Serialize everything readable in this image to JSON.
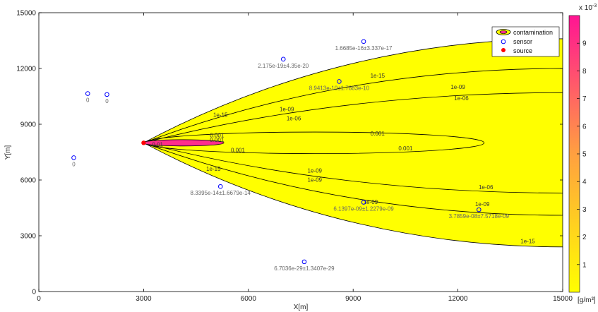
{
  "chart_data": {
    "type": "contour",
    "xlabel": "X[m]",
    "ylabel": "Y[m]",
    "xlim": [
      0,
      15000
    ],
    "ylim": [
      0,
      15000
    ],
    "xticks": [
      0,
      3000,
      6000,
      9000,
      12000,
      15000
    ],
    "yticks": [
      0,
      3000,
      6000,
      9000,
      12000,
      15000
    ],
    "legend": {
      "placement": "top-right",
      "entries": [
        "contamination",
        "sensor",
        "source"
      ]
    },
    "source": {
      "x": 3000,
      "y": 8000,
      "color": "#ff0000"
    },
    "plume_fill_color": "#ffff00",
    "core_fill_color": "#ff2d8c",
    "contours": [
      {
        "level": "1e-15",
        "outer_x": 15000,
        "upper_y": 13600,
        "lower_y": 2400
      },
      {
        "level": "1e-09",
        "outer_x": 15000,
        "upper_y": 12000,
        "lower_y": 4100
      },
      {
        "level": "1e-06",
        "outer_x": 15000,
        "upper_y": 10700,
        "lower_y": 5300
      },
      {
        "level": "0.001",
        "shape": "ellipse",
        "cx": 7900,
        "cy": 8000,
        "rx": 4850,
        "ry": 580
      },
      {
        "level": "core",
        "shape": "ellipse",
        "cx": 4130,
        "cy": 8000,
        "rx": 1170,
        "ry": 170
      }
    ],
    "contour_labels": [
      {
        "text": "1e-15",
        "x": 5200,
        "y": 9400
      },
      {
        "text": "1e-15",
        "x": 9700,
        "y": 11500
      },
      {
        "text": "1e-09",
        "x": 7100,
        "y": 9700
      },
      {
        "text": "1e-09",
        "x": 12000,
        "y": 10900
      },
      {
        "text": "1e-06",
        "x": 7300,
        "y": 9200
      },
      {
        "text": "1e-06",
        "x": 12100,
        "y": 10300
      },
      {
        "text": "0.001",
        "x": 5100,
        "y": 8300
      },
      {
        "text": "0.001",
        "x": 9700,
        "y": 8400
      },
      {
        "text": "0.001",
        "x": 5700,
        "y": 7500
      },
      {
        "text": "0.001",
        "x": 10500,
        "y": 7600
      },
      {
        "text": "0.001",
        "x": 5100,
        "y": 8050
      },
      {
        "text": "0.01",
        "x": 3400,
        "y": 7800
      },
      {
        "text": "1e-15",
        "x": 5000,
        "y": 6500
      },
      {
        "text": "1e-09",
        "x": 7900,
        "y": 6400
      },
      {
        "text": "1e-09",
        "x": 7900,
        "y": 5900
      },
      {
        "text": "1e-09",
        "x": 9500,
        "y": 4700
      },
      {
        "text": "1e-06",
        "x": 12800,
        "y": 5500
      },
      {
        "text": "1e-09",
        "x": 12700,
        "y": 4600
      },
      {
        "text": "1e-15",
        "x": 14000,
        "y": 2600
      }
    ],
    "sensors": [
      {
        "x": 1000,
        "y": 7200,
        "label": "0"
      },
      {
        "x": 1400,
        "y": 10650,
        "label": "0"
      },
      {
        "x": 1950,
        "y": 10600,
        "label": "0"
      },
      {
        "x": 7000,
        "y": 12500,
        "label": "2.175e-19±4.35e-20"
      },
      {
        "x": 9300,
        "y": 13450,
        "label": "1.6685e-16±3.337e-17"
      },
      {
        "x": 8600,
        "y": 11300,
        "label": "8.9413e-10±1.7883e-10"
      },
      {
        "x": 5200,
        "y": 5650,
        "label": "8.3395e-14±1.6679e-14"
      },
      {
        "x": 9300,
        "y": 4800,
        "label": "6.1397e-09±1.2279e-09"
      },
      {
        "x": 12600,
        "y": 4400,
        "label": "3.7859e-08±7.5718e-09"
      },
      {
        "x": 7600,
        "y": 1600,
        "label": "6.7036e-29±1.3407e-29"
      }
    ],
    "colorbar": {
      "label": "[g/m³]",
      "exponent_label": "x 10",
      "exponent_power": "-3",
      "min": 0,
      "max": 10,
      "ticks": [
        1,
        2,
        3,
        4,
        5,
        6,
        7,
        8,
        9
      ],
      "color_low": "#ffff00",
      "color_high": "#ff1493"
    }
  }
}
